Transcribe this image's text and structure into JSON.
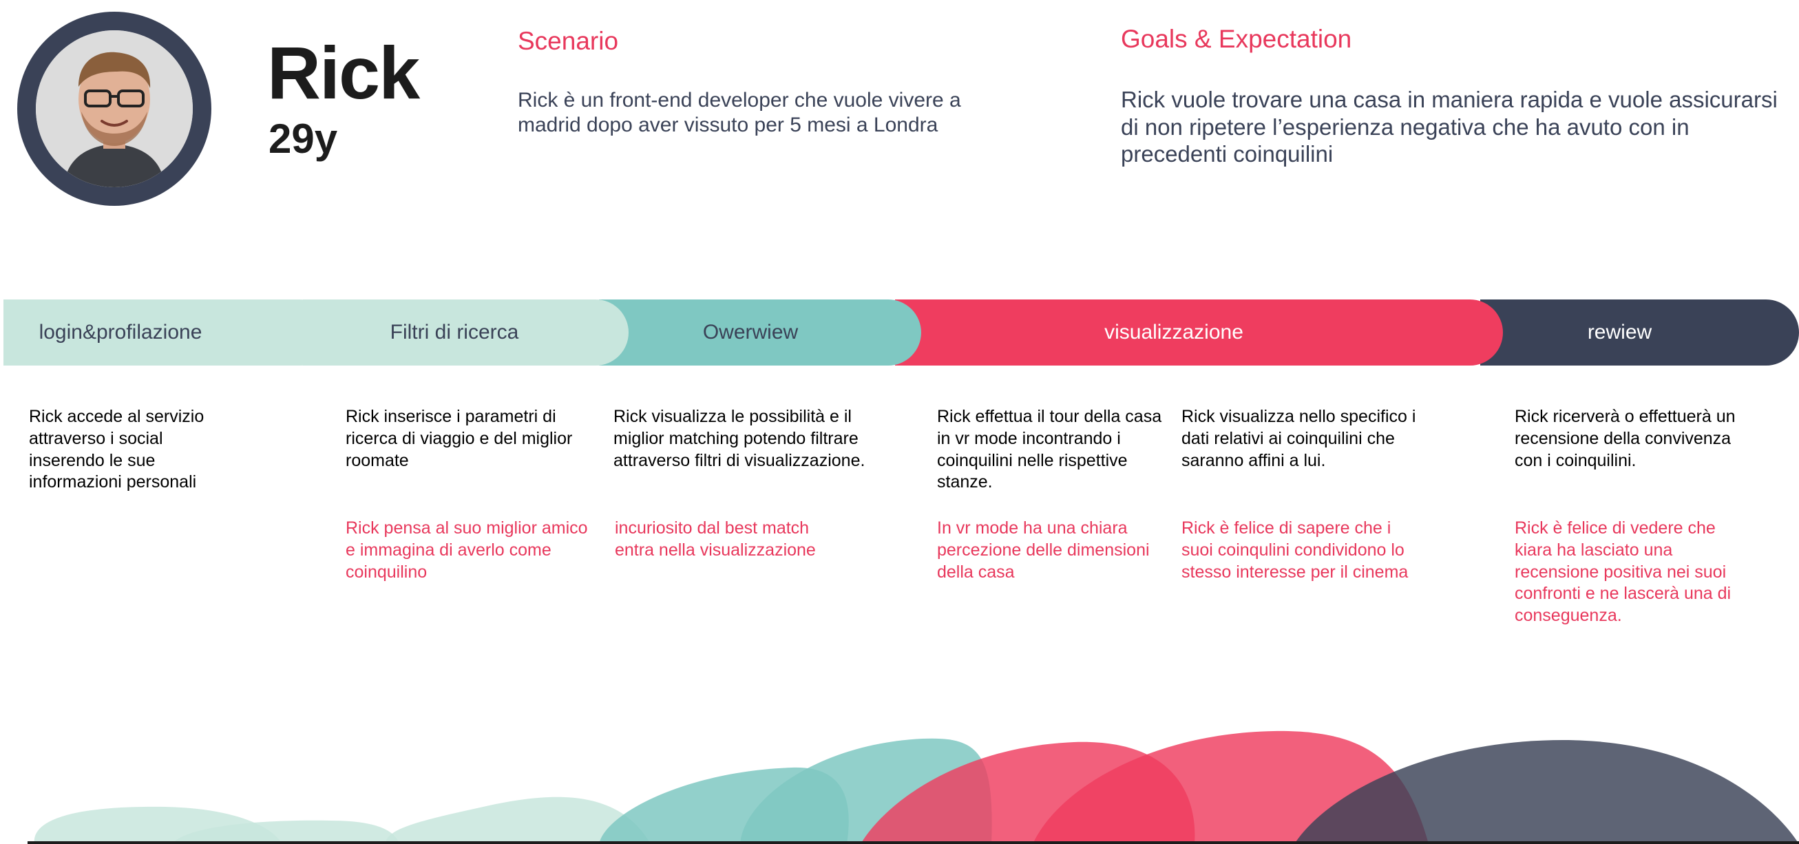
{
  "persona": {
    "name": "Rick",
    "age": "29y"
  },
  "scenario": {
    "title": "Scenario",
    "text": "Rick è un front-end developer che vuole vivere a madrid dopo aver vissuto per 5 mesi a Londra"
  },
  "goals": {
    "title": "Goals & Expectation",
    "text": "Rick vuole trovare una casa in maniera rapida e vuole assicurarsi di non ripetere l’esperienza negativa che ha avuto con in precedenti coinquilini"
  },
  "stages": [
    {
      "label": "login&profilazione",
      "color": "#c8e6dd"
    },
    {
      "label": "Filtri di ricerca",
      "color": "#c8e6dd"
    },
    {
      "label": "Owerwiew",
      "color": "#7fc8c2"
    },
    {
      "label": "visualizzazione",
      "color": "#ef3d5f"
    },
    {
      "label": "rewiew",
      "color": "#3a4257"
    }
  ],
  "steps": [
    {
      "action": "Rick accede al servizio attraverso i social inserendo le sue informazioni personali",
      "feeling": ""
    },
    {
      "action": "Rick inserisce i parametri di ricerca di viaggio e del miglior roomate",
      "feeling": "Rick pensa al suo miglior amico e immagina di averlo come coinquilino"
    },
    {
      "action": "Rick visualizza le possibilità e il miglior matching potendo filtrare attraverso filtri di visualizzazione.",
      "feeling": "incuriosito dal best match entra nella visualizzazione"
    },
    {
      "action": "Rick effettua il tour della casa in vr mode incontrando i coinquilini nelle rispettive stanze.",
      "feeling": "In vr mode ha una chiara percezione delle dimensioni della casa"
    },
    {
      "action": "Rick visualizza nello specifico i dati relativi ai coinquilini che saranno affini a lui.",
      "feeling": "Rick è felice di sapere che i suoi coinqulini condividono lo stesso interesse per il cinema"
    },
    {
      "action": "Rick ricerverà o effettuerà un recensione della convivenza con i coinquilini.",
      "feeling": "Rick è felice di vedere che kiara ha lasciato una recensione positiva nei suoi confronti e ne lascerà una di conseguenza."
    }
  ],
  "colors": {
    "accent": "#e8385c",
    "navy": "#3a4257",
    "mint": "#c8e6dd",
    "teal": "#7fc8c2",
    "red": "#ef3d5f"
  }
}
